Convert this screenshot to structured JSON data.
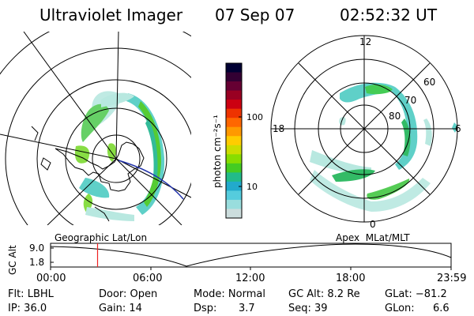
{
  "header": {
    "instrument": "Ultraviolet Imager",
    "date": "07 Sep 07",
    "time": "02:52:32 UT"
  },
  "colorbar": {
    "unit_label": "photon cm⁻²s⁻¹",
    "ticks": [
      "100",
      "10"
    ],
    "colors": [
      "#000033",
      "#330033",
      "#660033",
      "#990022",
      "#cc0011",
      "#ee3300",
      "#ff6600",
      "#ff9900",
      "#ffcc00",
      "#ccdd00",
      "#88dd00",
      "#44cc22",
      "#22bb88",
      "#22aacc",
      "#55ccdd",
      "#99dddd",
      "#ccdddd"
    ]
  },
  "left_panel": {
    "label": "Geographic Lat/Lon"
  },
  "right_panel": {
    "label": "Apex  MLat/MLT",
    "mlt_labels": {
      "top": "12",
      "bottom": "0",
      "left": "18",
      "right": "6"
    },
    "lat_labels": [
      "60",
      "70",
      "80"
    ]
  },
  "timeline": {
    "ylabel": "GC Alt",
    "y_ticks": [
      "9.0",
      "1.8"
    ],
    "x_ticks": [
      "00:00",
      "06:00",
      "12:00",
      "18:00",
      "23:59"
    ],
    "current_time_fraction": 0.1173
  },
  "info": {
    "filter": "Flt: LBHL",
    "ip": "IP: 36.0",
    "door": "Door: Open",
    "gain": "Gain: 14",
    "mode": "Mode: Normal",
    "dsp_label": "Dsp:",
    "dsp_value": "3.7",
    "gc_alt": "GC Alt: 8.2 Re",
    "seq": "Seq: 39",
    "glat": "GLat: −81.2",
    "glon_label": "GLon:",
    "glon_value": "6.6"
  }
}
